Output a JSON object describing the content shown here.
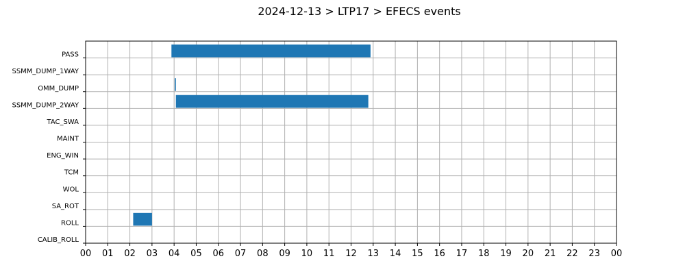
{
  "chart_data": {
    "type": "gantt",
    "title": "2024-12-13 > LTP17 > EFECS events",
    "xlabel": "",
    "ylabel": "",
    "xlim": [
      0,
      24
    ],
    "x_tick_labels": [
      "00",
      "01",
      "02",
      "03",
      "04",
      "05",
      "06",
      "07",
      "08",
      "09",
      "10",
      "11",
      "12",
      "13",
      "14",
      "15",
      "16",
      "17",
      "18",
      "19",
      "20",
      "21",
      "22",
      "23",
      "00"
    ],
    "categories": [
      "PASS",
      "SSMM_DUMP_1WAY",
      "OMM_DUMP",
      "SSMM_DUMP_2WAY",
      "TAC_SWA",
      "MAINT",
      "ENG_WIN",
      "TCM",
      "WOL",
      "SA_ROT",
      "ROLL",
      "CALIB_ROLL"
    ],
    "grid": true,
    "bar_color": "#1f77b4",
    "events": [
      {
        "category": "PASS",
        "start": 3.88,
        "end": 12.88
      },
      {
        "category": "OMM_DUMP",
        "start": 4.03,
        "end": 4.08
      },
      {
        "category": "SSMM_DUMP_2WAY",
        "start": 4.08,
        "end": 12.78
      },
      {
        "category": "ROLL",
        "start": 2.15,
        "end": 3.0
      }
    ]
  }
}
